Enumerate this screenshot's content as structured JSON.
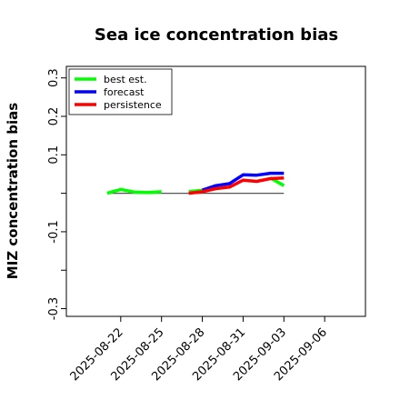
{
  "chart_data": {
    "type": "line",
    "title": "Sea ice concentration bias",
    "xlabel": "",
    "ylabel": "MIZ concentration bias",
    "xlim": [
      "2025-08-18",
      "2025-09-09"
    ],
    "ylim": [
      -0.32,
      0.33
    ],
    "yticks": [
      -0.3,
      -0.2,
      -0.1,
      0.0,
      0.1,
      0.2,
      0.3
    ],
    "ytick_labels": [
      "-0.3",
      "",
      "-0.1",
      "",
      "0.1",
      "0.2",
      "0.3"
    ],
    "xticks": [
      "2025-08-22",
      "2025-08-25",
      "2025-08-28",
      "2025-08-31",
      "2025-09-03",
      "2025-09-06"
    ],
    "highlighted_xtick": "2025-08-28",
    "highlight_color": "#228B22",
    "legend_position": "upper-left",
    "zero_line": {
      "x": [
        "2025-08-21",
        "2025-09-03"
      ],
      "y": 0.0,
      "color": "#555555"
    },
    "series": [
      {
        "name": "best est.",
        "color": "#00ff00",
        "segments": [
          {
            "x": [
              "2025-08-21",
              "2025-08-22",
              "2025-08-23",
              "2025-08-24",
              "2025-08-25"
            ],
            "y": [
              0.0,
              0.01,
              0.003,
              0.002,
              0.004
            ]
          },
          {
            "x": [
              "2025-08-27",
              "2025-08-28"
            ],
            "y": [
              0.004,
              0.008
            ]
          },
          {
            "x": [
              "2025-09-02",
              "2025-09-03"
            ],
            "y": [
              0.04,
              0.02
            ]
          }
        ]
      },
      {
        "name": "forecast",
        "color": "#0000ff",
        "segments": [
          {
            "x": [
              "2025-08-28",
              "2025-08-29",
              "2025-08-30",
              "2025-08-31",
              "2025-09-01",
              "2025-09-02",
              "2025-09-03"
            ],
            "y": [
              0.008,
              0.02,
              0.025,
              0.048,
              0.047,
              0.052,
              0.052
            ]
          }
        ]
      },
      {
        "name": "persistence",
        "color": "#ff0000",
        "segments": [
          {
            "x": [
              "2025-08-27",
              "2025-08-28",
              "2025-08-29",
              "2025-08-30",
              "2025-08-31",
              "2025-09-01",
              "2025-09-02",
              "2025-09-03"
            ],
            "y": [
              0.0,
              0.004,
              0.012,
              0.016,
              0.034,
              0.031,
              0.038,
              0.04
            ]
          }
        ]
      }
    ]
  }
}
